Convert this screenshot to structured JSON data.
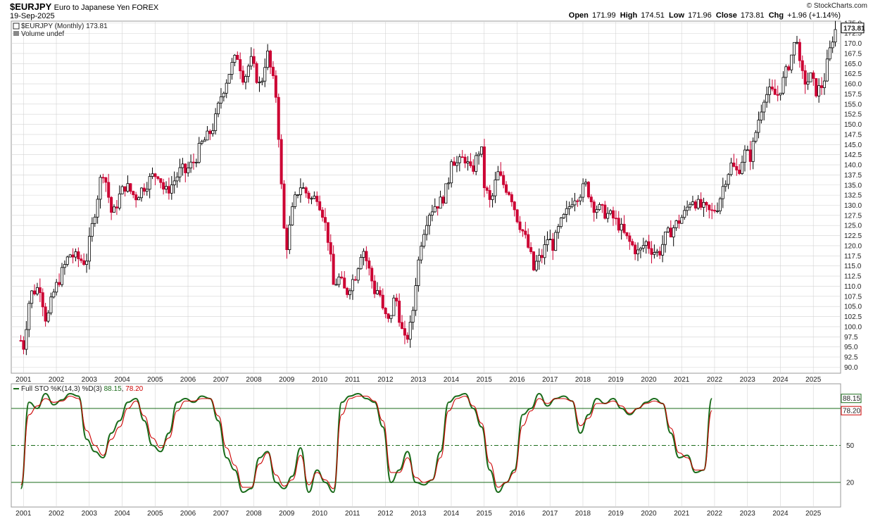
{
  "header": {
    "symbol": "$EURJPY",
    "name": "Euro to Japanese Yen FOREX",
    "date": "19-Sep-2025",
    "brand": "© StockCharts.com",
    "quote": {
      "open_label": "Open",
      "open": "171.99",
      "high_label": "High",
      "high": "174.51",
      "low_label": "Low",
      "low": "171.96",
      "close_label": "Close",
      "close": "173.81",
      "chg_label": "Chg",
      "chg": "+1.96 (+1.14%)"
    }
  },
  "colors": {
    "up": "#000000",
    "down": "#cc0033",
    "k_line": "#1a6b1a",
    "d_line": "#cc0000",
    "grid": "#d4d4d4",
    "ref_line": "#1a6b1a"
  },
  "chart_data": [
    {
      "type": "candlestick",
      "title": "$EURJPY (Monthly) 173.81",
      "legend": [
        "$EURJPY (Monthly) 173.81",
        "Volume undef"
      ],
      "last_value_label": "173.81",
      "y_ticks": [
        "90.0",
        "92.5",
        "95.0",
        "97.5",
        "100.0",
        "102.5",
        "105.0",
        "107.5",
        "110.0",
        "112.5",
        "115.0",
        "117.5",
        "120.0",
        "122.5",
        "125.0",
        "127.5",
        "130.0",
        "132.5",
        "135.0",
        "137.5",
        "140.0",
        "142.5",
        "145.0",
        "147.5",
        "150.0",
        "152.5",
        "155.0",
        "157.5",
        "160.0",
        "162.5",
        "165.0",
        "167.5",
        "170.0",
        "172.5",
        "175.0"
      ],
      "ylim": [
        88.5,
        175.5
      ],
      "x_tick_labels": [
        "2001",
        "2002",
        "2003",
        "2004",
        "2005",
        "2006",
        "2007",
        "2008",
        "2009",
        "2010",
        "2011",
        "2012",
        "2013",
        "2014",
        "2015",
        "2016",
        "2017",
        "2018",
        "2019",
        "2020",
        "2021",
        "2022",
        "2023",
        "2024",
        "2025"
      ],
      "monthly_close_path": [
        [
          2000.9,
          97
        ],
        [
          2001.0,
          95
        ],
        [
          2001.2,
          108
        ],
        [
          2001.5,
          110
        ],
        [
          2001.7,
          101
        ],
        [
          2001.9,
          108
        ],
        [
          2002.2,
          114
        ],
        [
          2002.4,
          118
        ],
        [
          2002.6,
          117
        ],
        [
          2002.9,
          116
        ],
        [
          2003.2,
          130
        ],
        [
          2003.4,
          139
        ],
        [
          2003.5,
          136
        ],
        [
          2003.7,
          127
        ],
        [
          2003.9,
          132
        ],
        [
          2004.1,
          135
        ],
        [
          2004.4,
          132
        ],
        [
          2004.7,
          135
        ],
        [
          2004.9,
          137
        ],
        [
          2005.1,
          138
        ],
        [
          2005.3,
          133
        ],
        [
          2005.5,
          135
        ],
        [
          2005.8,
          139
        ],
        [
          2005.9,
          138
        ],
        [
          2006.2,
          141
        ],
        [
          2006.4,
          145
        ],
        [
          2006.6,
          147
        ],
        [
          2006.8,
          150
        ],
        [
          2007.0,
          157
        ],
        [
          2007.3,
          164
        ],
        [
          2007.5,
          167
        ],
        [
          2007.7,
          161
        ],
        [
          2007.9,
          166
        ],
        [
          2008.2,
          159
        ],
        [
          2008.4,
          168
        ],
        [
          2008.5,
          164
        ],
        [
          2008.7,
          156
        ],
        [
          2008.8,
          140
        ],
        [
          2008.9,
          125
        ],
        [
          2009.0,
          120
        ],
        [
          2009.2,
          130
        ],
        [
          2009.4,
          135
        ],
        [
          2009.6,
          133
        ],
        [
          2009.8,
          131
        ],
        [
          2009.9,
          133
        ],
        [
          2010.1,
          128
        ],
        [
          2010.3,
          120
        ],
        [
          2010.4,
          110
        ],
        [
          2010.6,
          112
        ],
        [
          2010.8,
          108
        ],
        [
          2010.9,
          110
        ],
        [
          2011.1,
          113
        ],
        [
          2011.3,
          120
        ],
        [
          2011.5,
          114
        ],
        [
          2011.7,
          108
        ],
        [
          2011.8,
          110
        ],
        [
          2011.9,
          104
        ],
        [
          2012.1,
          101
        ],
        [
          2012.3,
          108
        ],
        [
          2012.5,
          99
        ],
        [
          2012.6,
          96
        ],
        [
          2012.8,
          101
        ],
        [
          2012.9,
          110
        ],
        [
          2013.1,
          122
        ],
        [
          2013.3,
          128
        ],
        [
          2013.5,
          130
        ],
        [
          2013.7,
          131
        ],
        [
          2013.9,
          135
        ],
        [
          2014.0,
          142
        ],
        [
          2014.2,
          140
        ],
        [
          2014.4,
          142
        ],
        [
          2014.6,
          138
        ],
        [
          2014.7,
          140
        ],
        [
          2014.9,
          145
        ],
        [
          2015.0,
          135
        ],
        [
          2015.2,
          130
        ],
        [
          2015.4,
          138
        ],
        [
          2015.6,
          135
        ],
        [
          2015.8,
          133
        ],
        [
          2016.0,
          127
        ],
        [
          2016.2,
          123
        ],
        [
          2016.4,
          118
        ],
        [
          2016.5,
          114
        ],
        [
          2016.6,
          116
        ],
        [
          2016.8,
          118
        ],
        [
          2016.9,
          122
        ],
        [
          2017.1,
          120
        ],
        [
          2017.3,
          125
        ],
        [
          2017.5,
          128
        ],
        [
          2017.7,
          132
        ],
        [
          2017.9,
          133
        ],
        [
          2018.1,
          135
        ],
        [
          2018.3,
          130
        ],
        [
          2018.5,
          129
        ],
        [
          2018.7,
          128
        ],
        [
          2018.9,
          127
        ],
        [
          2019.1,
          125
        ],
        [
          2019.3,
          122
        ],
        [
          2019.5,
          120
        ],
        [
          2019.7,
          118
        ],
        [
          2019.9,
          121
        ],
        [
          2020.1,
          119
        ],
        [
          2020.3,
          118
        ],
        [
          2020.5,
          122
        ],
        [
          2020.7,
          124
        ],
        [
          2020.9,
          126
        ],
        [
          2021.1,
          128
        ],
        [
          2021.3,
          132
        ],
        [
          2021.5,
          130
        ],
        [
          2021.7,
          129
        ],
        [
          2021.9,
          128
        ],
        [
          2022.1,
          130
        ],
        [
          2022.3,
          136
        ],
        [
          2022.5,
          140
        ],
        [
          2022.7,
          138
        ],
        [
          2022.9,
          143
        ],
        [
          2023.1,
          142
        ],
        [
          2023.3,
          150
        ],
        [
          2023.5,
          157
        ],
        [
          2023.7,
          158
        ],
        [
          2023.9,
          157
        ],
        [
          2024.1,
          161
        ],
        [
          2024.3,
          166
        ],
        [
          2024.5,
          172
        ],
        [
          2024.6,
          163
        ],
        [
          2024.8,
          160
        ],
        [
          2024.9,
          162
        ],
        [
          2025.1,
          158
        ],
        [
          2025.3,
          160
        ],
        [
          2025.5,
          168
        ],
        [
          2025.6,
          172
        ],
        [
          2025.7,
          173.81
        ]
      ],
      "grid": true,
      "scale": "linear"
    },
    {
      "type": "line",
      "title": "Full STO %K(14,3) %D(3) 88.15, 78.20",
      "legend_label": "Full STO %K(14,3) %D(3)",
      "k_value": "88.15",
      "d_value": "78.20",
      "y_ticks": [
        "20",
        "50"
      ],
      "ylim": [
        0,
        100
      ],
      "reference_lines": [
        80,
        50,
        20
      ],
      "x_tick_labels": [
        "2001",
        "2002",
        "2003",
        "2004",
        "2005",
        "2006",
        "2007",
        "2008",
        "2009",
        "2010",
        "2011",
        "2012",
        "2013",
        "2014",
        "2015",
        "2016",
        "2017",
        "2018",
        "2019",
        "2020",
        "2021",
        "2022",
        "2023",
        "2024",
        "2025"
      ],
      "series": [
        {
          "name": "%K",
          "x_start": 2000.92,
          "x_step": 0.25,
          "values": [
            15,
            85,
            80,
            92,
            83,
            87,
            92,
            90,
            55,
            45,
            40,
            60,
            70,
            85,
            88,
            70,
            50,
            45,
            60,
            85,
            88,
            85,
            90,
            88,
            70,
            40,
            30,
            12,
            15,
            40,
            45,
            20,
            15,
            25,
            48,
            12,
            30,
            20,
            12,
            85,
            90,
            92,
            88,
            85,
            65,
            20,
            30,
            45,
            20,
            18,
            22,
            45,
            85,
            90,
            92,
            80,
            65,
            30,
            12,
            20,
            30,
            75,
            80,
            92,
            82,
            88,
            90,
            86,
            60,
            75,
            88,
            84,
            88,
            80,
            75,
            80,
            85,
            88,
            84,
            60,
            40,
            42,
            28,
            30,
            88
          ]
        },
        {
          "name": "%D",
          "x_start": 2000.92,
          "x_step": 0.25,
          "values": [
            18,
            75,
            82,
            88,
            85,
            86,
            90,
            88,
            62,
            50,
            42,
            55,
            65,
            80,
            86,
            74,
            56,
            48,
            56,
            78,
            86,
            86,
            88,
            88,
            74,
            48,
            34,
            16,
            16,
            35,
            44,
            26,
            17,
            22,
            42,
            18,
            28,
            22,
            15,
            75,
            88,
            90,
            90,
            86,
            70,
            28,
            28,
            40,
            24,
            20,
            22,
            40,
            78,
            88,
            90,
            82,
            68,
            36,
            16,
            20,
            28,
            66,
            78,
            88,
            84,
            88,
            88,
            86,
            66,
            72,
            84,
            84,
            86,
            82,
            76,
            80,
            84,
            86,
            84,
            64,
            44,
            40,
            30,
            30,
            78.2
          ]
        }
      ]
    }
  ]
}
